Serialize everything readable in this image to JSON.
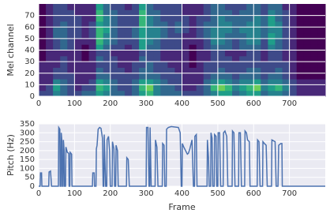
{
  "chart_data": [
    {
      "type": "heatmap",
      "ylabel": "Mel channel",
      "xlim": [
        0,
        800
      ],
      "ylim": [
        0,
        80
      ],
      "xticks": [
        0,
        100,
        200,
        300,
        400,
        500,
        600,
        700
      ],
      "yticks": [
        0,
        10,
        20,
        30,
        40,
        50,
        60,
        70
      ],
      "grid": true,
      "grid_color": "#ffffff",
      "colormap": [
        "#440154",
        "#482878",
        "#3e4a89",
        "#31688e",
        "#26828e",
        "#1f9e89",
        "#35b779",
        "#6ece58",
        "#b5de2b",
        "#fde725"
      ],
      "values": [
        [
          2,
          2,
          4,
          3,
          2,
          2,
          3,
          3,
          5,
          4,
          3,
          3,
          2,
          3,
          5,
          6,
          4,
          3,
          3,
          3,
          2,
          2,
          2,
          3,
          4,
          5,
          5,
          3,
          4,
          5,
          5,
          3,
          4,
          4,
          3,
          2,
          1,
          1,
          1,
          1
        ],
        [
          1,
          2,
          5,
          3,
          2,
          1,
          2,
          2,
          6,
          5,
          3,
          2,
          2,
          3,
          6,
          7,
          4,
          3,
          3,
          2,
          1,
          1,
          2,
          3,
          6,
          7,
          6,
          4,
          5,
          6,
          7,
          4,
          5,
          6,
          4,
          2,
          1,
          1,
          1,
          1
        ],
        [
          1,
          1,
          4,
          3,
          2,
          1,
          1,
          2,
          5,
          4,
          3,
          2,
          2,
          3,
          5,
          5,
          4,
          3,
          2,
          2,
          1,
          1,
          1,
          3,
          4,
          5,
          4,
          3,
          4,
          4,
          5,
          3,
          4,
          4,
          3,
          2,
          1,
          1,
          1,
          1
        ],
        [
          1,
          1,
          2,
          2,
          2,
          1,
          1,
          1,
          3,
          3,
          2,
          2,
          2,
          2,
          3,
          3,
          3,
          2,
          2,
          2,
          1,
          1,
          1,
          2,
          3,
          3,
          3,
          2,
          3,
          3,
          3,
          2,
          3,
          3,
          2,
          1,
          0,
          0,
          0,
          0
        ],
        [
          1,
          1,
          2,
          2,
          1,
          1,
          1,
          1,
          3,
          2,
          2,
          2,
          1,
          2,
          3,
          3,
          2,
          2,
          2,
          1,
          1,
          1,
          1,
          2,
          2,
          3,
          2,
          2,
          2,
          3,
          3,
          2,
          2,
          3,
          2,
          1,
          0,
          0,
          0,
          0
        ],
        [
          1,
          1,
          1,
          2,
          1,
          1,
          1,
          1,
          2,
          2,
          2,
          1,
          1,
          2,
          2,
          3,
          2,
          2,
          1,
          1,
          1,
          0,
          1,
          2,
          2,
          2,
          2,
          2,
          2,
          2,
          2,
          2,
          2,
          2,
          2,
          1,
          0,
          0,
          0,
          0
        ],
        [
          0,
          1,
          1,
          2,
          1,
          1,
          0,
          1,
          3,
          2,
          2,
          1,
          1,
          1,
          3,
          2,
          2,
          1,
          1,
          1,
          1,
          0,
          1,
          1,
          2,
          2,
          2,
          1,
          2,
          2,
          2,
          1,
          2,
          2,
          1,
          1,
          0,
          0,
          0,
          0
        ],
        [
          0,
          1,
          1,
          1,
          1,
          1,
          0,
          1,
          2,
          2,
          1,
          1,
          1,
          1,
          2,
          2,
          2,
          1,
          1,
          1,
          1,
          0,
          1,
          1,
          2,
          2,
          1,
          1,
          1,
          2,
          2,
          1,
          2,
          2,
          1,
          1,
          0,
          0,
          0,
          0
        ],
        [
          0,
          1,
          2,
          3,
          2,
          1,
          0,
          1,
          5,
          3,
          2,
          2,
          1,
          2,
          5,
          3,
          3,
          2,
          2,
          2,
          1,
          0,
          1,
          2,
          3,
          3,
          3,
          2,
          3,
          3,
          3,
          2,
          4,
          3,
          2,
          1,
          0,
          0,
          0,
          0
        ],
        [
          0,
          1,
          2,
          3,
          2,
          1,
          1,
          1,
          6,
          4,
          3,
          2,
          2,
          2,
          5,
          4,
          3,
          2,
          2,
          2,
          1,
          1,
          1,
          2,
          4,
          4,
          3,
          2,
          3,
          4,
          4,
          2,
          5,
          3,
          2,
          1,
          0,
          0,
          0,
          0
        ],
        [
          0,
          1,
          3,
          3,
          2,
          2,
          1,
          2,
          6,
          4,
          3,
          2,
          2,
          3,
          5,
          4,
          4,
          3,
          2,
          2,
          1,
          1,
          2,
          3,
          4,
          4,
          3,
          3,
          3,
          4,
          4,
          3,
          5,
          4,
          2,
          1,
          0,
          0,
          0,
          0
        ],
        [
          0,
          1,
          3,
          3,
          2,
          2,
          1,
          2,
          6,
          5,
          3,
          2,
          2,
          3,
          5,
          4,
          4,
          3,
          2,
          3,
          2,
          1,
          2,
          3,
          4,
          4,
          4,
          3,
          4,
          4,
          4,
          3,
          4,
          4,
          2,
          1,
          0,
          0,
          0,
          0
        ],
        [
          0,
          1,
          2,
          3,
          2,
          2,
          1,
          2,
          5,
          4,
          3,
          2,
          2,
          2,
          6,
          4,
          3,
          3,
          2,
          3,
          2,
          1,
          2,
          3,
          3,
          4,
          4,
          3,
          3,
          4,
          4,
          3,
          5,
          4,
          2,
          1,
          0,
          0,
          0,
          0
        ],
        [
          0,
          1,
          2,
          2,
          2,
          2,
          1,
          1,
          6,
          4,
          3,
          2,
          2,
          2,
          6,
          4,
          3,
          2,
          2,
          2,
          2,
          1,
          2,
          2,
          3,
          4,
          3,
          3,
          3,
          3,
          4,
          3,
          5,
          3,
          2,
          1,
          0,
          0,
          0,
          0
        ],
        [
          0,
          1,
          2,
          2,
          2,
          1,
          1,
          1,
          6,
          3,
          3,
          2,
          2,
          2,
          6,
          3,
          3,
          2,
          2,
          2,
          1,
          1,
          1,
          2,
          3,
          3,
          3,
          2,
          3,
          3,
          3,
          2,
          4,
          3,
          2,
          1,
          0,
          0,
          0,
          0
        ],
        [
          0,
          1,
          2,
          2,
          1,
          1,
          1,
          1,
          5,
          3,
          2,
          2,
          1,
          2,
          5,
          3,
          2,
          2,
          2,
          2,
          1,
          1,
          1,
          2,
          3,
          3,
          2,
          2,
          2,
          3,
          3,
          2,
          3,
          3,
          1,
          1,
          0,
          0,
          0,
          0
        ]
      ]
    },
    {
      "type": "line",
      "xlabel": "Frame",
      "ylabel": "Pitch (Hz)",
      "xlim": [
        0,
        800
      ],
      "ylim": [
        0,
        350
      ],
      "xticks": [
        0,
        100,
        200,
        300,
        400,
        500,
        600,
        700
      ],
      "yticks": [
        0,
        50,
        100,
        150,
        200,
        250,
        300,
        350
      ],
      "grid": true,
      "background": "#eaeaf2",
      "grid_color": "#ffffff",
      "x": [
        0,
        4,
        5,
        8,
        9,
        28,
        29,
        33,
        36,
        55,
        56,
        59,
        60,
        62,
        63,
        65,
        66,
        68,
        69,
        71,
        72,
        75,
        76,
        80,
        84,
        85,
        87,
        88,
        92,
        93,
        150,
        151,
        155,
        156,
        160,
        161,
        163,
        166,
        170,
        174,
        178,
        180,
        182,
        183,
        187,
        190,
        191,
        195,
        198,
        200,
        205,
        206,
        210,
        212,
        215,
        216,
        220,
        222,
        245,
        246,
        250,
        253,
        300,
        301,
        305,
        308,
        310,
        311,
        314,
        325,
        326,
        330,
        333,
        345,
        346,
        350,
        352,
        356,
        357,
        362,
        370,
        390,
        395,
        398,
        400,
        401,
        405,
        410,
        415,
        418,
        422,
        428,
        432,
        435,
        436,
        440,
        442,
        470,
        471,
        474,
        476,
        480,
        481,
        484,
        486,
        490,
        491,
        495,
        497,
        500,
        501,
        505,
        508,
        515,
        516,
        520,
        525,
        528,
        540,
        541,
        545,
        548,
        558,
        559,
        563,
        566,
        575,
        576,
        580,
        583,
        588,
        590,
        610,
        611,
        615,
        618,
        625,
        626,
        630,
        635,
        638,
        650,
        651,
        660,
        663,
        668,
        670,
        676,
        679,
        680,
        800
      ],
      "series": [
        {
          "color": "#4c72b0",
          "values": [
            0,
            0,
            75,
            75,
            0,
            0,
            80,
            85,
            0,
            0,
            330,
            320,
            0,
            0,
            300,
            250,
            0,
            0,
            260,
            200,
            0,
            0,
            220,
            190,
            185,
            0,
            0,
            190,
            180,
            0,
            0,
            75,
            75,
            0,
            0,
            210,
            230,
            320,
            330,
            325,
            270,
            0,
            0,
            290,
            0,
            0,
            260,
            280,
            200,
            0,
            0,
            250,
            210,
            0,
            0,
            230,
            200,
            0,
            0,
            160,
            150,
            0,
            0,
            330,
            330,
            0,
            0,
            330,
            0,
            0,
            260,
            220,
            0,
            0,
            240,
            230,
            0,
            0,
            320,
            330,
            335,
            330,
            300,
            0,
            0,
            240,
            220,
            200,
            180,
            185,
            210,
            260,
            0,
            0,
            280,
            290,
            0,
            0,
            260,
            160,
            0,
            0,
            300,
            270,
            0,
            0,
            290,
            280,
            0,
            0,
            300,
            300,
            0,
            0,
            300,
            310,
            280,
            0,
            0,
            310,
            300,
            0,
            0,
            300,
            300,
            0,
            0,
            310,
            300,
            260,
            250,
            0,
            0,
            260,
            250,
            0,
            0,
            250,
            240,
            230,
            0,
            0,
            260,
            250,
            0,
            0,
            230,
            240,
            240,
            0,
            0
          ]
        }
      ]
    }
  ]
}
